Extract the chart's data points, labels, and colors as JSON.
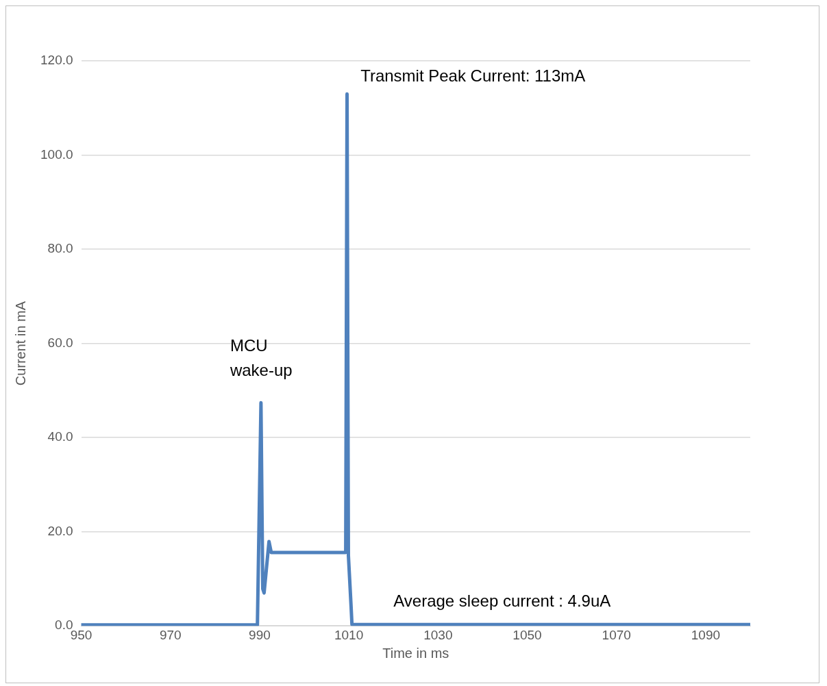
{
  "chart_data": {
    "type": "line",
    "xlabel": "Time in ms",
    "ylabel": "Current in mA",
    "x": [
      950,
      989.5,
      990.3,
      990.7,
      991.0,
      992.1,
      992.6,
      1009.3,
      1009.6,
      1009.9,
      1010.5,
      1010.7,
      1100
    ],
    "series": [
      {
        "color": "#4f81bd",
        "values": [
          0.2,
          0.2,
          47.4,
          7.9,
          7.0,
          17.9,
          15.6,
          15.6,
          113,
          15,
          4.2,
          0.3,
          0.3
        ]
      }
    ],
    "xlim": [
      950,
      1100
    ],
    "xticks": [
      950,
      970,
      990,
      1010,
      1030,
      1050,
      1070,
      1090
    ],
    "ylim": [
      0,
      120
    ],
    "yticks": [
      {
        "value": 0,
        "label": "0.0"
      },
      {
        "value": 20,
        "label": "20.0"
      },
      {
        "value": 40,
        "label": "40.0"
      },
      {
        "value": 60,
        "label": "60.0"
      },
      {
        "value": 80,
        "label": "80.0"
      },
      {
        "value": 100,
        "label": "100.0"
      },
      {
        "value": 120,
        "label": "120.0"
      }
    ],
    "grid": "y",
    "legend": false,
    "marker": "none",
    "line_style": "solid",
    "annotations": [
      {
        "text": "Transmit Peak Current: 113mA",
        "x": 1010,
        "y": 113
      },
      {
        "text": "MCU\nwake-up",
        "x": 990,
        "y": 47.4
      },
      {
        "text": "Average sleep current : 4.9uA",
        "x": 1020,
        "y": 0
      }
    ]
  }
}
